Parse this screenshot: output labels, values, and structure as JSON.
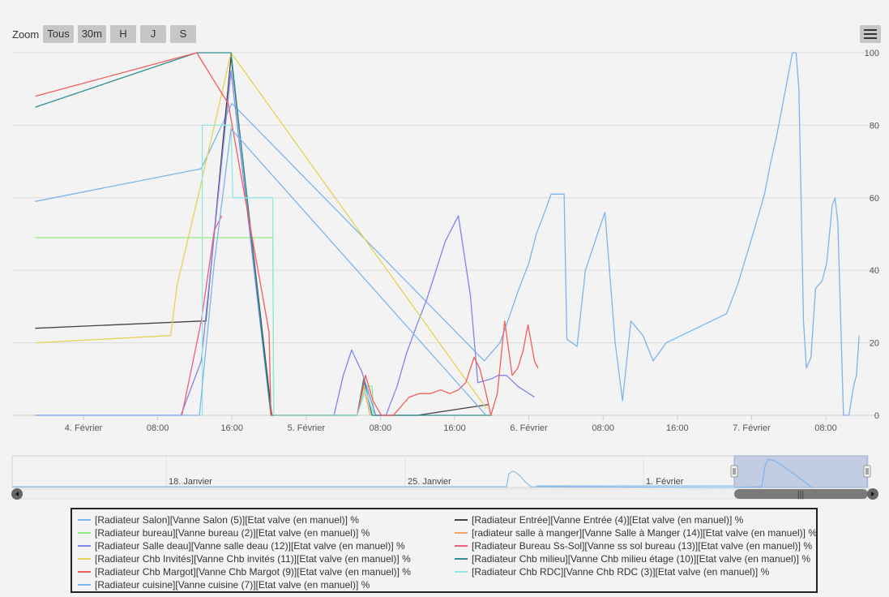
{
  "toolbar": {
    "zoom_label": "Zoom",
    "buttons": [
      "Tous",
      "30m",
      "H",
      "J",
      "S"
    ]
  },
  "colors": {
    "salon": "#7cb5ec",
    "entree": "#434348",
    "bureau": "#90ed7d",
    "salle_manger": "#f7a35c",
    "salle_deau": "#8085e9",
    "bureau_sssol": "#f15c80",
    "chb_invites": "#e4d354",
    "chb_milieu": "#2b908f",
    "chb_margot": "#f45b5b",
    "chb_rdc": "#91e8e1",
    "cuisine": "#7cb5ec"
  },
  "chart_data": {
    "type": "line",
    "title": "",
    "xlabel": "",
    "ylabel": "",
    "ylim": [
      0,
      100
    ],
    "y_ticks": [
      "0",
      "20",
      "40",
      "60",
      "80",
      "100"
    ],
    "x_ticks": [
      "4. Février",
      "08:00",
      "16:00",
      "5. Février",
      "08:00",
      "16:00",
      "6. Février",
      "08:00",
      "16:00",
      "7. Février",
      "08:00"
    ],
    "x_range_hours": [
      "2020-02-03T18:45",
      "2020-02-07T20:00"
    ],
    "grid": true,
    "legend_position": "bottom",
    "series": [
      {
        "name": "[Radiateur Salon][Vanne Salon (5)][Etat valve (en manuel)] %",
        "color_key": "salon",
        "points": [
          [
            -5.2,
            59
          ],
          [
            12.7,
            68
          ],
          [
            16.0,
            86
          ],
          [
            43.2,
            15
          ],
          [
            44.9,
            20
          ],
          [
            46.0,
            28
          ],
          [
            46.8,
            34
          ],
          [
            48.0,
            42
          ],
          [
            48.8,
            50
          ],
          [
            49.7,
            56
          ],
          [
            50.4,
            61
          ],
          [
            51.5,
            61
          ],
          [
            51.8,
            61
          ],
          [
            52.1,
            21
          ],
          [
            53.2,
            19
          ],
          [
            54.1,
            40
          ],
          [
            55.4,
            50
          ],
          [
            56.2,
            56
          ],
          [
            57.3,
            20
          ],
          [
            58.1,
            4
          ],
          [
            59.0,
            26
          ],
          [
            60.3,
            22
          ],
          [
            61.4,
            15
          ],
          [
            62.8,
            20
          ],
          [
            69.3,
            28
          ],
          [
            70.5,
            36
          ],
          [
            71.8,
            47
          ],
          [
            72.5,
            53
          ],
          [
            73.4,
            61
          ],
          [
            74.0,
            69
          ],
          [
            74.7,
            77
          ],
          [
            75.6,
            89
          ],
          [
            76.4,
            100
          ],
          [
            76.8,
            100
          ],
          [
            77.1,
            90
          ],
          [
            77.6,
            26
          ],
          [
            77.9,
            13
          ],
          [
            78.4,
            16
          ],
          [
            78.9,
            35
          ],
          [
            79.6,
            37
          ],
          [
            80.1,
            42
          ],
          [
            80.4,
            50
          ],
          [
            80.7,
            58
          ],
          [
            81.0,
            60
          ],
          [
            81.3,
            53
          ],
          [
            81.6,
            27
          ],
          [
            81.9,
            0
          ],
          [
            82.5,
            0
          ],
          [
            82.8,
            5
          ],
          [
            83.0,
            8
          ],
          [
            83.3,
            11
          ],
          [
            83.6,
            22
          ]
        ]
      },
      {
        "name": "[Radiateur Entrée][Vanne Entrée (4)][Etat valve (en manuel)] %",
        "color_key": "entree",
        "points": [
          [
            -5.2,
            24
          ],
          [
            12.7,
            26
          ],
          [
            13.2,
            26
          ],
          [
            15.9,
            99
          ],
          [
            20.3,
            0
          ],
          [
            29.5,
            0
          ],
          [
            30.2,
            10
          ],
          [
            31.1,
            0
          ],
          [
            36.0,
            0
          ],
          [
            43.7,
            3
          ]
        ]
      },
      {
        "name": "[Radiateur bureau][Vanne bureau (2)][Etat valve (en manuel)] %",
        "color_key": "bureau",
        "points": [
          [
            -5.2,
            49
          ],
          [
            20.4,
            49
          ],
          [
            20.5,
            0
          ],
          [
            29.5,
            0
          ],
          [
            30.4,
            8
          ],
          [
            31.1,
            8
          ],
          [
            31.3,
            0
          ]
        ]
      },
      {
        "name": "[radiateur salle à manger][Vanne Salle à Manger (14)][Etat valve (en manuel)] %",
        "color_key": "salle_manger",
        "points": [
          [
            29.5,
            0
          ],
          [
            30.2,
            8
          ],
          [
            30.9,
            0
          ]
        ]
      },
      {
        "name": "[Radiateur Salle deau][Vanne salle deau (12)][Etat valve (en manuel)] %",
        "color_key": "salle_deau",
        "points": [
          [
            -5.2,
            0
          ],
          [
            10.5,
            0
          ],
          [
            12.7,
            15
          ],
          [
            15.9,
            95
          ],
          [
            20.2,
            0
          ],
          [
            27.0,
            0
          ],
          [
            28.0,
            11
          ],
          [
            28.9,
            18
          ],
          [
            30.0,
            12
          ],
          [
            31.5,
            0
          ],
          [
            32.6,
            0
          ],
          [
            33.8,
            8
          ],
          [
            34.8,
            17
          ],
          [
            35.8,
            24
          ],
          [
            37.0,
            32
          ],
          [
            38.0,
            40
          ],
          [
            39.0,
            48
          ],
          [
            40.4,
            55
          ],
          [
            41.7,
            33
          ],
          [
            42.5,
            9
          ],
          [
            43.9,
            10
          ],
          [
            44.7,
            11
          ],
          [
            45.6,
            11
          ],
          [
            46.8,
            8
          ],
          [
            48.6,
            5
          ]
        ]
      },
      {
        "name": "[Radiateur Bureau Ss-Sol][Vanne ss sol bureau (13)][Etat valve (en manuel)] %",
        "color_key": "bureau_sssol",
        "points": [
          [
            10.6,
            0
          ],
          [
            12.7,
            26
          ],
          [
            14.1,
            51
          ],
          [
            14.9,
            55
          ]
        ]
      },
      {
        "name": "[Radiateur Chb Invités][Vanne Chb invités (11)][Etat valve (en manuel)] %",
        "color_key": "chb_invites",
        "points": [
          [
            -5.2,
            20
          ],
          [
            9.4,
            22
          ],
          [
            10.1,
            36
          ],
          [
            12.5,
            62
          ],
          [
            15.9,
            100
          ],
          [
            43.4,
            2
          ]
        ]
      },
      {
        "name": "[Radiateur Chb milieu][Vanne Chb milieu étage (10)][Etat valve (en manuel)] %",
        "color_key": "chb_milieu",
        "points": [
          [
            -5.2,
            85
          ],
          [
            12.2,
            100
          ],
          [
            15.9,
            100
          ],
          [
            20.2,
            0
          ],
          [
            29.5,
            0
          ],
          [
            30.2,
            10
          ],
          [
            31.1,
            0
          ],
          [
            43.2,
            0
          ],
          [
            44.0,
            0
          ]
        ]
      },
      {
        "name": "[Radiateur Chb Margot][Vanne Chb Margot (9)][Etat valve (en manuel)] %",
        "color_key": "chb_margot",
        "points": [
          [
            -5.2,
            88
          ],
          [
            12.2,
            100
          ],
          [
            15.6,
            86
          ],
          [
            20.0,
            23
          ],
          [
            20.2,
            0
          ],
          [
            29.5,
            0
          ],
          [
            30.4,
            11
          ],
          [
            31.2,
            4
          ],
          [
            32.1,
            0
          ],
          [
            33.4,
            0
          ],
          [
            35.1,
            5
          ],
          [
            36.2,
            6
          ],
          [
            37.4,
            6
          ],
          [
            38.5,
            7
          ],
          [
            39.5,
            6
          ],
          [
            40.4,
            7
          ],
          [
            41.2,
            9
          ],
          [
            42.1,
            16
          ],
          [
            42.7,
            13
          ],
          [
            43.3,
            7
          ],
          [
            43.9,
            0
          ],
          [
            44.6,
            6
          ],
          [
            45.4,
            26
          ],
          [
            46.2,
            11
          ],
          [
            46.8,
            13
          ],
          [
            47.4,
            18
          ],
          [
            47.9,
            25
          ],
          [
            48.6,
            15
          ],
          [
            49.0,
            13
          ]
        ]
      },
      {
        "name": "[Radiateur Chb RDC][Vanne Chb RDC (3)][Etat valve (en manuel)] %",
        "color_key": "chb_rdc",
        "points": [
          [
            12.8,
            0
          ],
          [
            12.8,
            80
          ],
          [
            15.9,
            80
          ],
          [
            16.1,
            60
          ],
          [
            20.4,
            60
          ],
          [
            20.5,
            0
          ],
          [
            29.5,
            0
          ],
          [
            30.4,
            7
          ],
          [
            31.3,
            0
          ]
        ]
      },
      {
        "name": "[Radiateur cuisine][Vanne cuisine (7)][Etat valve (en manuel)] %",
        "color_key": "cuisine",
        "points": [
          [
            -5.2,
            0
          ],
          [
            10.0,
            0
          ],
          [
            12.5,
            0
          ],
          [
            14.1,
            42
          ],
          [
            15.9,
            79
          ],
          [
            43.4,
            0
          ]
        ]
      }
    ]
  },
  "navigator": {
    "labels": [
      "18. Janvier",
      "25. Janvier",
      "1. Février"
    ],
    "range_selector_label": "|||"
  },
  "legend": {
    "col1": [
      {
        "label": "[Radiateur Salon][Vanne Salon (5)][Etat valve (en manuel)] %",
        "color": "#7cb5ec"
      },
      {
        "label": "[Radiateur bureau][Vanne bureau (2)][Etat valve (en manuel)] %",
        "color": "#90ed7d"
      },
      {
        "label": "[Radiateur Salle deau][Vanne salle deau (12)][Etat valve (en manuel)] %",
        "color": "#8085e9"
      },
      {
        "label": "[Radiateur Chb Invités][Vanne Chb invités (11)][Etat valve (en manuel)] %",
        "color": "#e4d354"
      },
      {
        "label": "[Radiateur Chb Margot][Vanne Chb Margot (9)][Etat valve (en manuel)] %",
        "color": "#f45b5b"
      },
      {
        "label": "[Radiateur cuisine][Vanne cuisine (7)][Etat valve (en manuel)] %",
        "color": "#7cb5ec"
      }
    ],
    "col2": [
      {
        "label": "[Radiateur Entrée][Vanne Entrée (4)][Etat valve (en manuel)] %",
        "color": "#434348"
      },
      {
        "label": "[radiateur salle à manger][Vanne Salle à Manger (14)][Etat valve (en manuel)] %",
        "color": "#f7a35c"
      },
      {
        "label": "[Radiateur Bureau Ss-Sol][Vanne ss sol bureau (13)][Etat valve (en manuel)] %",
        "color": "#f15c80"
      },
      {
        "label": "[Radiateur Chb milieu][Vanne Chb milieu étage (10)][Etat valve (en manuel)] %",
        "color": "#2b908f"
      },
      {
        "label": "[Radiateur Chb RDC][Vanne Chb RDC (3)][Etat valve (en manuel)] %",
        "color": "#91e8e1"
      }
    ]
  }
}
